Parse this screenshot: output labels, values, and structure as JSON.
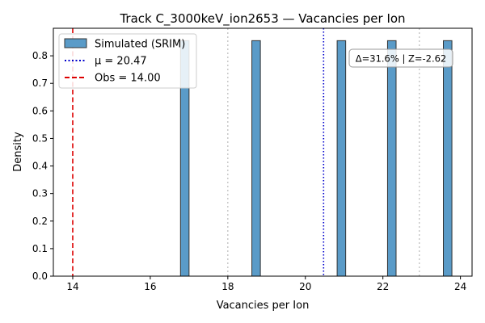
{
  "chart_data": {
    "type": "bar",
    "title": "Track C_3000keV_ion2653 — Vacancies per Ion",
    "xlabel": "Vacancies per Ion",
    "ylabel": "Density",
    "xlim": [
      13.5,
      24.3
    ],
    "ylim": [
      0,
      0.9
    ],
    "xticks": [
      14,
      16,
      18,
      20,
      22,
      24
    ],
    "yticks": [
      0.0,
      0.1,
      0.2,
      0.3,
      0.4,
      0.5,
      0.6,
      0.7,
      0.8
    ],
    "bars": [
      {
        "x0": 16.78,
        "x1": 17.0,
        "value": 0.855
      },
      {
        "x0": 18.62,
        "x1": 18.84,
        "value": 0.855
      },
      {
        "x0": 20.82,
        "x1": 21.04,
        "value": 0.855
      },
      {
        "x0": 22.12,
        "x1": 22.34,
        "value": 0.855
      },
      {
        "x0": 23.56,
        "x1": 23.78,
        "value": 0.855
      }
    ],
    "mean_line": {
      "x": 20.47,
      "label": "μ = 20.47"
    },
    "observed_line": {
      "x": 14.0,
      "label": "Obs = 14.00"
    },
    "sigma_lines": [
      18.0,
      22.94
    ],
    "legend_position": "upper left",
    "legend": {
      "hist": "Simulated (SRIM)",
      "mean": "μ = 20.47",
      "obs": "Obs = 14.00"
    },
    "annotation": "Δ=31.6% | Z=-2.62",
    "colors": {
      "bar": "#5a9bc8",
      "bar_edge": "#333333",
      "mean": "#0000cc",
      "obs": "#dd0000",
      "sigma": "#bbbbbb"
    }
  }
}
